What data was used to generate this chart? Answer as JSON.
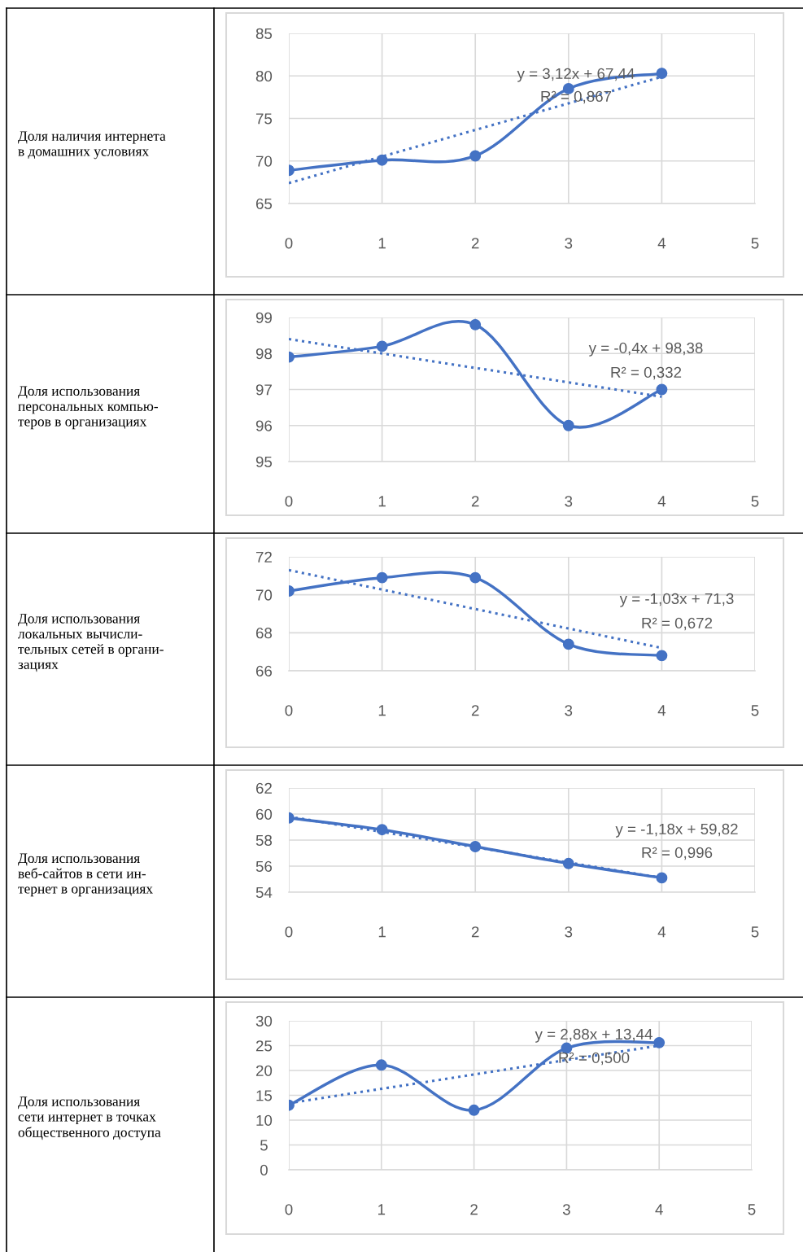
{
  "chart_data": [
    {
      "type": "line",
      "ylabel": "Доля наличия интернета\nв домашних условиях",
      "x": [
        0,
        1,
        2,
        3,
        4
      ],
      "xlim": [
        0,
        5
      ],
      "xticks": [
        0,
        1,
        2,
        3,
        4,
        5
      ],
      "ylim": [
        65,
        85
      ],
      "yticks": [
        65,
        70,
        75,
        80,
        85
      ],
      "grid": true,
      "marker": "circle",
      "line_style": "solid",
      "series": [
        {
          "color": "#4472c4",
          "values": [
            68.9,
            70.1,
            70.6,
            78.5,
            80.3
          ]
        },
        {
          "type": "line",
          "color": "#4472c4",
          "values": [
            67.4,
            null,
            null,
            null,
            79.9
          ],
          "marker": "none",
          "line_style": "dotted"
        }
      ],
      "annotations": [
        "y = 3,12x + 67,44",
        "R² = 0,867"
      ]
    },
    {
      "type": "line",
      "ylabel": "Доля использования\nперсональных компью-\nтеров в организациях",
      "x": [
        0,
        1,
        2,
        3,
        4
      ],
      "xlim": [
        0,
        5
      ],
      "xticks": [
        0,
        1,
        2,
        3,
        4,
        5
      ],
      "ylim": [
        95,
        99
      ],
      "yticks": [
        95,
        96,
        97,
        98,
        99
      ],
      "grid": true,
      "marker": "circle",
      "line_style": "solid",
      "series": [
        {
          "color": "#4472c4",
          "values": [
            97.9,
            98.2,
            98.8,
            96.0,
            97.0
          ]
        },
        {
          "type": "line",
          "color": "#4472c4",
          "values": [
            98.4,
            null,
            null,
            null,
            96.8
          ],
          "marker": "none",
          "line_style": "dotted"
        }
      ],
      "annotations": [
        "y = -0,4x + 98,38",
        "R² = 0,332"
      ]
    },
    {
      "type": "line",
      "ylabel": "Доля использования\nлокальных вычисли-\nтельных сетей в органи-\nзациях",
      "x": [
        0,
        1,
        2,
        3,
        4
      ],
      "xlim": [
        0,
        5
      ],
      "xticks": [
        0,
        1,
        2,
        3,
        4,
        5
      ],
      "ylim": [
        66,
        72
      ],
      "yticks": [
        66,
        68,
        70,
        72
      ],
      "grid": true,
      "marker": "circle",
      "line_style": "solid",
      "series": [
        {
          "color": "#4472c4",
          "values": [
            70.2,
            70.9,
            70.9,
            67.4,
            66.8
          ]
        },
        {
          "type": "line",
          "color": "#4472c4",
          "values": [
            71.3,
            null,
            null,
            null,
            67.2
          ],
          "marker": "none",
          "line_style": "dotted"
        }
      ],
      "annotations": [
        "y = -1,03x + 71,3",
        "R² = 0,672"
      ]
    },
    {
      "type": "line",
      "ylabel": "Доля использования\nвеб-сайтов в сети ин-\nтернет в организациях",
      "x": [
        0,
        1,
        2,
        3,
        4
      ],
      "xlim": [
        0,
        5
      ],
      "xticks": [
        0,
        1,
        2,
        3,
        4,
        5
      ],
      "ylim": [
        54,
        62
      ],
      "yticks": [
        54,
        56,
        58,
        60,
        62
      ],
      "grid": true,
      "marker": "circle",
      "line_style": "solid",
      "series": [
        {
          "color": "#4472c4",
          "values": [
            59.7,
            58.8,
            57.5,
            56.2,
            55.1
          ]
        },
        {
          "type": "line",
          "color": "#4472c4",
          "values": [
            59.8,
            null,
            null,
            null,
            55.1
          ],
          "marker": "none",
          "line_style": "dotted"
        }
      ],
      "annotations": [
        "y = -1,18x + 59,82",
        "R² = 0,996"
      ]
    },
    {
      "type": "line",
      "ylabel": "Доля использования\nсети интернет в точках\nобщественного доступа",
      "x": [
        0,
        1,
        2,
        3,
        4
      ],
      "xlim": [
        0,
        5
      ],
      "xticks": [
        0,
        1,
        2,
        3,
        4,
        5
      ],
      "ylim": [
        0,
        30
      ],
      "yticks": [
        0,
        5,
        10,
        15,
        20,
        25,
        30
      ],
      "grid": true,
      "marker": "circle",
      "line_style": "solid",
      "series": [
        {
          "color": "#4472c4",
          "values": [
            13.0,
            21.1,
            12.0,
            24.5,
            25.6
          ]
        },
        {
          "type": "line",
          "color": "#4472c4",
          "values": [
            13.4,
            null,
            null,
            null,
            25.0
          ],
          "marker": "none",
          "line_style": "dotted"
        }
      ],
      "annotations": [
        "y = 2,88x + 13,44",
        "R² = 0,500"
      ]
    }
  ]
}
